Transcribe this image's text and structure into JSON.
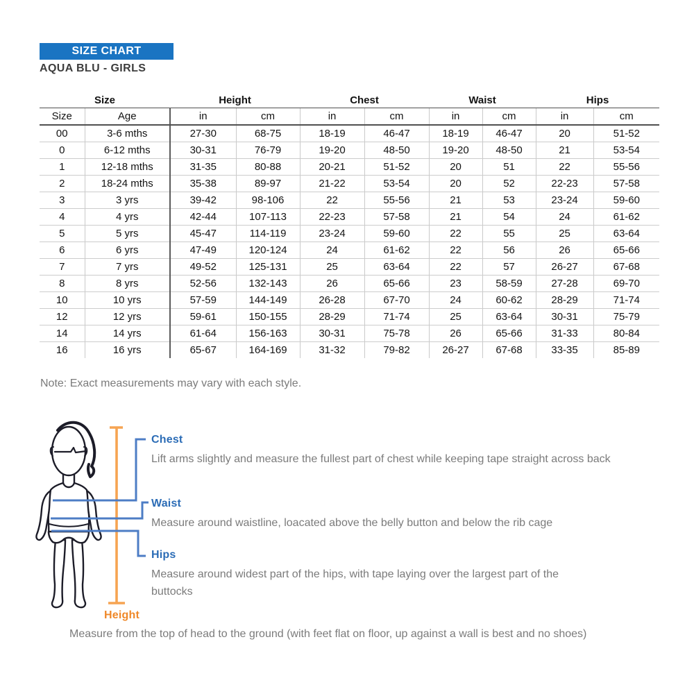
{
  "header": {
    "badge": "SIZE CHART",
    "subtitle": "AQUA BLU - GIRLS"
  },
  "table": {
    "groups": [
      {
        "label": "Size"
      },
      {
        "label": "Height"
      },
      {
        "label": "Chest"
      },
      {
        "label": "Waist"
      },
      {
        "label": "Hips"
      }
    ],
    "columns": [
      "Size",
      "Age",
      "in",
      "cm",
      "in",
      "cm",
      "in",
      "cm",
      "in",
      "cm"
    ],
    "rows": [
      [
        "00",
        "3-6 mths",
        "27-30",
        "68-75",
        "18-19",
        "46-47",
        "18-19",
        "46-47",
        "20",
        "51-52"
      ],
      [
        "0",
        "6-12 mths",
        "30-31",
        "76-79",
        "19-20",
        "48-50",
        "19-20",
        "48-50",
        "21",
        "53-54"
      ],
      [
        "1",
        "12-18 mths",
        "31-35",
        "80-88",
        "20-21",
        "51-52",
        "20",
        "51",
        "22",
        "55-56"
      ],
      [
        "2",
        "18-24 mths",
        "35-38",
        "89-97",
        "21-22",
        "53-54",
        "20",
        "52",
        "22-23",
        "57-58"
      ],
      [
        "3",
        "3 yrs",
        "39-42",
        "98-106",
        "22",
        "55-56",
        "21",
        "53",
        "23-24",
        "59-60"
      ],
      [
        "4",
        "4 yrs",
        "42-44",
        "107-113",
        "22-23",
        "57-58",
        "21",
        "54",
        "24",
        "61-62"
      ],
      [
        "5",
        "5 yrs",
        "45-47",
        "114-119",
        "23-24",
        "59-60",
        "22",
        "55",
        "25",
        "63-64"
      ],
      [
        "6",
        "6 yrs",
        "47-49",
        "120-124",
        "24",
        "61-62",
        "22",
        "56",
        "26",
        "65-66"
      ],
      [
        "7",
        "7 yrs",
        "49-52",
        "125-131",
        "25",
        "63-64",
        "22",
        "57",
        "26-27",
        "67-68"
      ],
      [
        "8",
        "8 yrs",
        "52-56",
        "132-143",
        "26",
        "65-66",
        "23",
        "58-59",
        "27-28",
        "69-70"
      ],
      [
        "10",
        "10 yrs",
        "57-59",
        "144-149",
        "26-28",
        "67-70",
        "24",
        "60-62",
        "28-29",
        "71-74"
      ],
      [
        "12",
        "12 yrs",
        "59-61",
        "150-155",
        "28-29",
        "71-74",
        "25",
        "63-64",
        "30-31",
        "75-79"
      ],
      [
        "14",
        "14 yrs",
        "61-64",
        "156-163",
        "30-31",
        "75-78",
        "26",
        "65-66",
        "31-33",
        "80-84"
      ],
      [
        "16",
        "16 yrs",
        "65-67",
        "164-169",
        "31-32",
        "79-82",
        "26-27",
        "67-68",
        "33-35",
        "85-89"
      ]
    ]
  },
  "note": "Note: Exact measurements may vary with each style.",
  "guide": {
    "sections": [
      {
        "label": "Chest",
        "description": "Lift arms slightly and measure the fullest part of chest while keeping tape straight across back"
      },
      {
        "label": "Waist",
        "description": "Measure around waistline, loacated above the belly button and below the rib cage"
      },
      {
        "label": "Hips",
        "description": "Measure around widest part of the hips, with tape laying over the largest part of the buttocks"
      },
      {
        "label": "Height",
        "description": "Measure from the top of head to the ground (with feet flat on floor, up against a wall is best and no shoes)"
      }
    ]
  },
  "colors": {
    "banner_blue": "#1a74c2",
    "label_blue": "#2b6cb6",
    "line_blue": "#4d7dc5",
    "label_orange": "#ef8829",
    "line_orange": "#f6a452",
    "text_gray": "#7b7b7b",
    "table_text": "#131313"
  }
}
